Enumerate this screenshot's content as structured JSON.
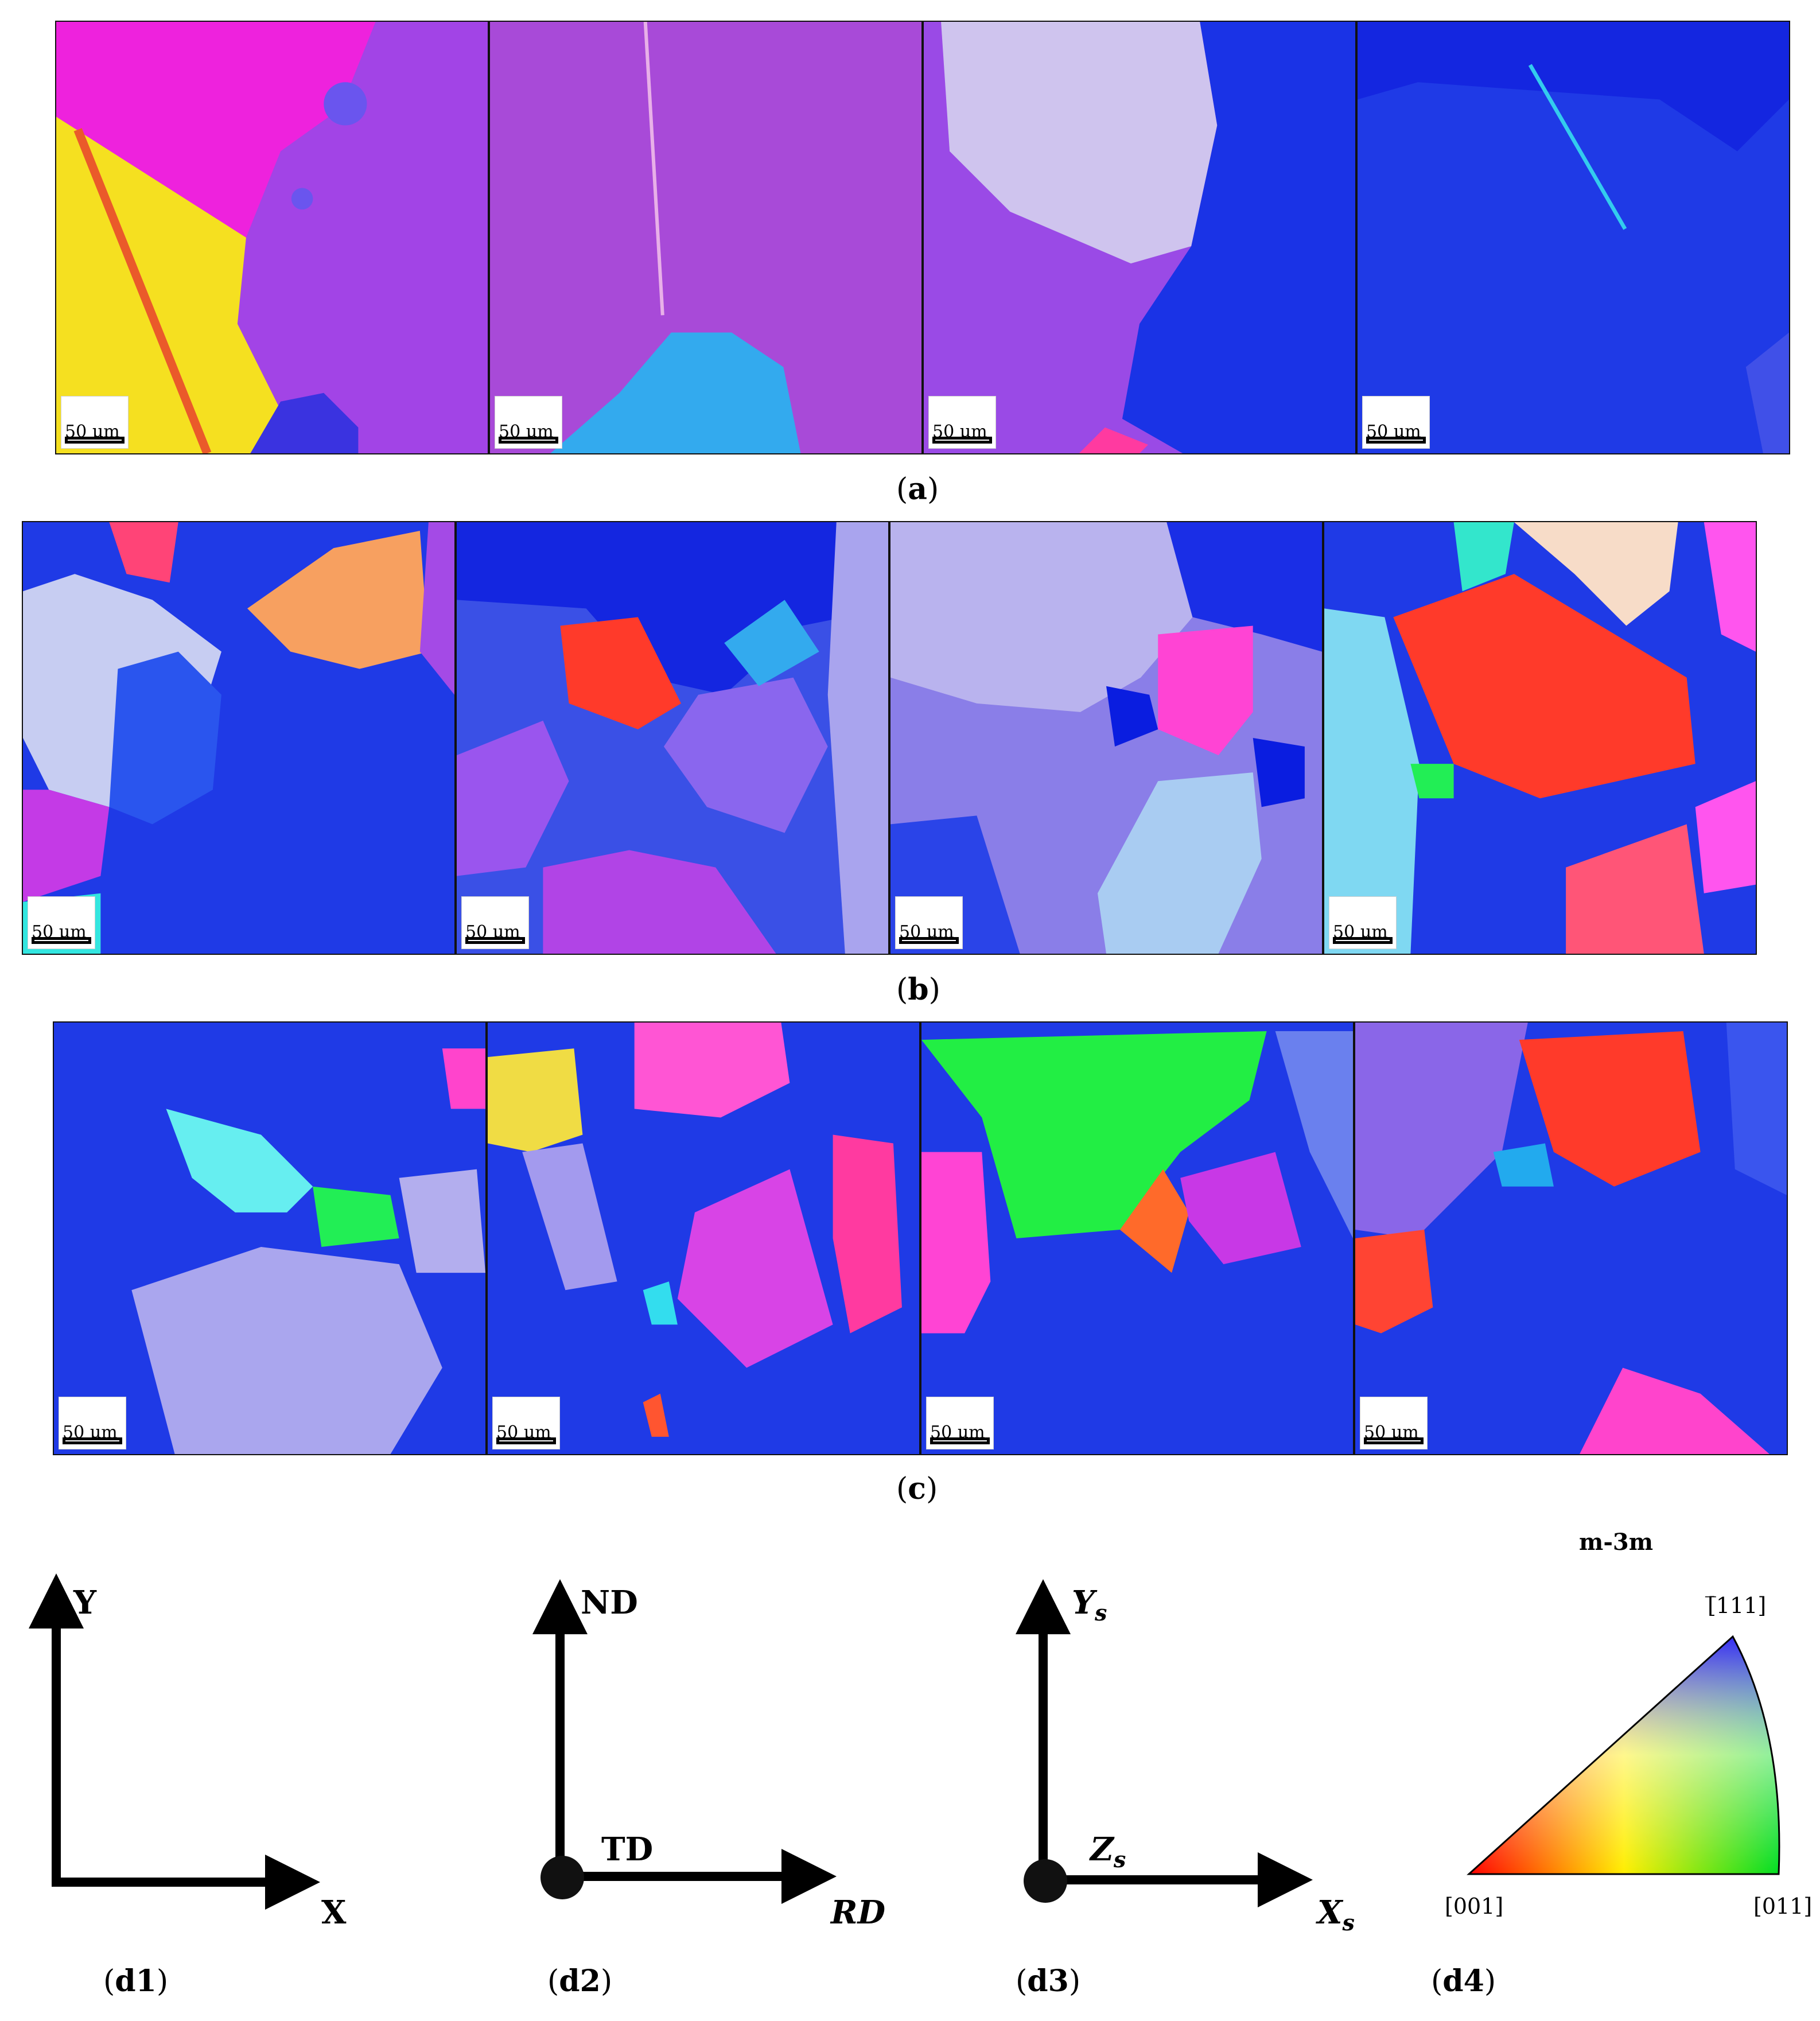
{
  "panels": {
    "a": {
      "caption": "a",
      "scale_label": "50 µm"
    },
    "b": {
      "caption": "b",
      "scale_label": "50 µm"
    },
    "c": {
      "caption": "c",
      "scale_label": "50 µm"
    }
  },
  "frames": {
    "d1": {
      "label": "d1",
      "y_axis": "Y",
      "x_axis": "X"
    },
    "d2": {
      "label": "d2",
      "y_axis": "ND",
      "origin": "TD",
      "x_axis": "RD"
    },
    "d3": {
      "label": "d3",
      "y_axis": "Y",
      "y_sub": "s",
      "origin": "Z",
      "origin_sub": "s",
      "x_axis": "X",
      "x_sub": "s"
    },
    "d4": {
      "label": "d4",
      "symmetry": "m-3m",
      "corner_top": "[̅111]",
      "corner_left": "[001]",
      "corner_right": "[011]"
    }
  },
  "colors": {
    "magenta": "#ee22dd",
    "violet": "#9944ee",
    "blue": "#1a33ee",
    "deep_blue": "#0a1de0",
    "yellow": "#f5e020",
    "light_blue": "#33aaff",
    "lavender": "#c7c2ee",
    "cyan": "#33e6f0",
    "red": "#ff3a2a",
    "orange": "#f7a060",
    "green": "#22ee55",
    "pink": "#ff55aa"
  }
}
